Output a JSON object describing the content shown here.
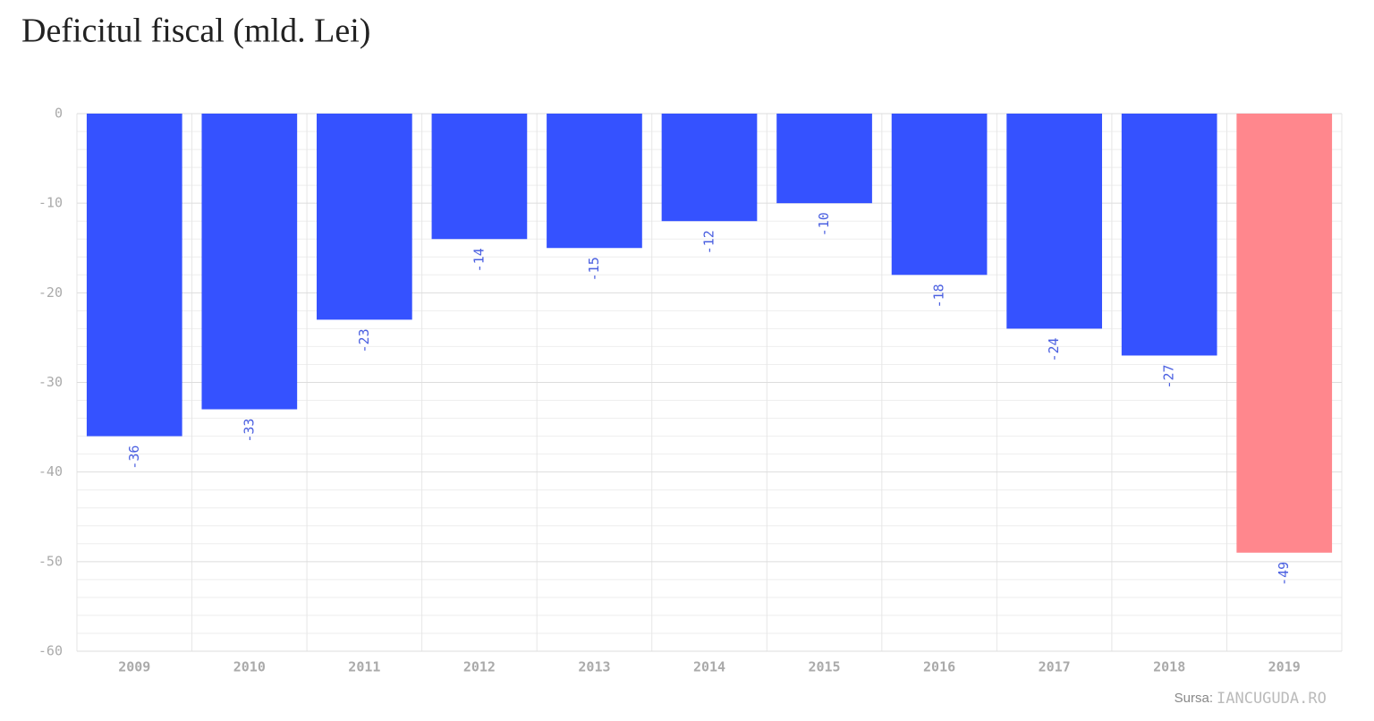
{
  "chart_data": {
    "type": "bar",
    "title": "Deficitul fiscal (mld. Lei)",
    "categories": [
      "2009",
      "2010",
      "2011",
      "2012",
      "2013",
      "2014",
      "2015",
      "2016",
      "2017",
      "2018",
      "2019"
    ],
    "values": [
      -36,
      -33,
      -23,
      -14,
      -15,
      -12,
      -10,
      -18,
      -24,
      -27,
      -49
    ],
    "colors": [
      "#3552ff",
      "#3552ff",
      "#3552ff",
      "#3552ff",
      "#3552ff",
      "#3552ff",
      "#3552ff",
      "#3552ff",
      "#3552ff",
      "#3552ff",
      "#ff878d"
    ],
    "ylim": [
      -60,
      0
    ],
    "yticks": [
      0,
      -10,
      -20,
      -30,
      -40,
      -50,
      -60
    ],
    "grid": true,
    "source_label": "Sursa:",
    "source": "IANCUGUDA.RO"
  }
}
